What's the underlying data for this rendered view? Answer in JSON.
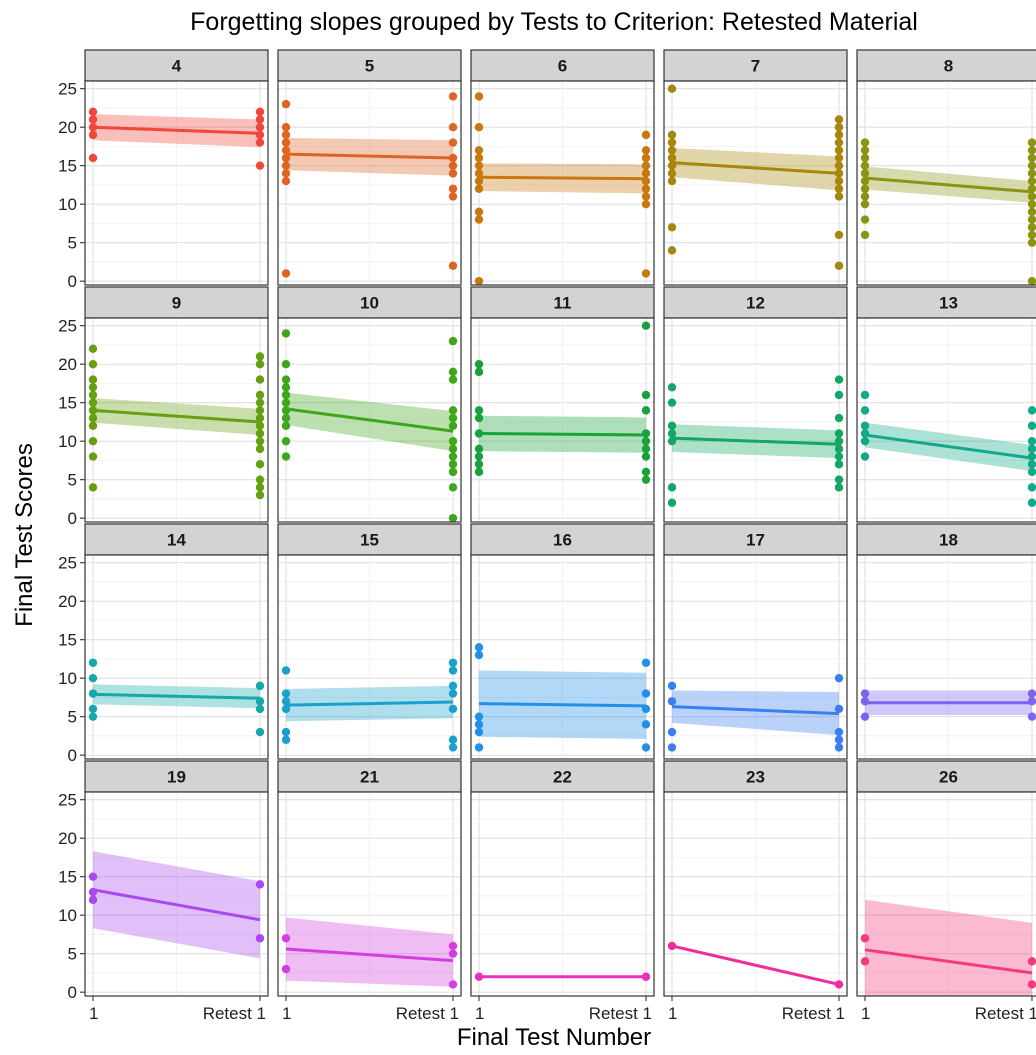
{
  "chart_data": {
    "type": "scatter",
    "title": "Forgetting slopes grouped by Tests to Criterion: Retested Material",
    "xlabel": "Final Test Number",
    "ylabel": "Final Test Scores",
    "x_categories": [
      "1",
      "Retest 1"
    ],
    "y_ticks": [
      0,
      5,
      10,
      15,
      20,
      25
    ],
    "ylim": [
      -0.5,
      26
    ],
    "grid": true,
    "layout": {
      "rows": 4,
      "cols": 5
    },
    "panels": [
      {
        "label": "4",
        "color": "#F0463C",
        "y1": [
          22,
          21,
          20,
          19,
          16
        ],
        "y2": [
          22,
          21,
          20,
          19,
          18,
          15
        ],
        "fit": [
          20.0,
          19.2
        ],
        "ci": [
          [
            21.7,
            18.3
          ],
          [
            21.0,
            17.4
          ]
        ]
      },
      {
        "label": "5",
        "color": "#DE6424",
        "y1": [
          23,
          20,
          19,
          18,
          17,
          16,
          15,
          14,
          13,
          1
        ],
        "y2": [
          24,
          20,
          18,
          16,
          15,
          14,
          12,
          11,
          2
        ],
        "fit": [
          16.5,
          16.0
        ],
        "ci": [
          [
            18.6,
            14.4
          ],
          [
            18.3,
            13.7
          ]
        ]
      },
      {
        "label": "6",
        "color": "#C8780E",
        "y1": [
          24,
          20,
          17,
          16,
          15,
          14,
          13,
          12,
          9,
          8,
          0
        ],
        "y2": [
          19,
          17,
          16,
          15,
          14,
          13,
          12,
          11,
          10,
          1
        ],
        "fit": [
          13.5,
          13.3
        ],
        "ci": [
          [
            15.3,
            11.7
          ],
          [
            15.2,
            11.4
          ]
        ]
      },
      {
        "label": "7",
        "color": "#A8860C",
        "y1": [
          25,
          19,
          18,
          17,
          16,
          15,
          14,
          13,
          7,
          4
        ],
        "y2": [
          21,
          20,
          19,
          18,
          17,
          16,
          15,
          14,
          13,
          12,
          11,
          6,
          2
        ],
        "fit": [
          15.4,
          14.0
        ],
        "ci": [
          [
            17.3,
            13.5
          ],
          [
            16.2,
            11.8
          ]
        ]
      },
      {
        "label": "8",
        "color": "#8A9412",
        "y1": [
          18,
          17,
          16,
          15,
          14,
          13,
          12,
          11,
          10,
          8,
          6
        ],
        "y2": [
          18,
          17,
          16,
          15,
          14,
          13,
          12,
          11,
          10,
          9,
          8,
          7,
          6,
          5,
          0
        ],
        "fit": [
          13.4,
          11.6
        ],
        "ci": [
          [
            14.9,
            11.9
          ],
          [
            13.0,
            10.2
          ]
        ]
      },
      {
        "label": "9",
        "color": "#64A012",
        "y1": [
          22,
          20,
          18,
          17,
          16,
          15,
          14,
          13,
          12,
          10,
          8,
          4
        ],
        "y2": [
          21,
          20,
          18,
          16,
          15,
          14,
          13,
          12,
          11,
          10,
          9,
          7,
          5,
          4,
          3
        ],
        "fit": [
          14.0,
          12.5
        ],
        "ci": [
          [
            15.6,
            12.4
          ],
          [
            14.2,
            10.8
          ]
        ]
      },
      {
        "label": "10",
        "color": "#3EA61A",
        "y1": [
          24,
          20,
          18,
          17,
          16,
          15,
          14,
          13,
          12,
          10,
          8
        ],
        "y2": [
          23,
          19,
          18,
          14,
          13,
          12,
          10,
          9,
          8,
          7,
          6,
          4,
          0
        ],
        "fit": [
          14.2,
          11.3
        ],
        "ci": [
          [
            16.3,
            12.1
          ],
          [
            13.9,
            8.7
          ]
        ]
      },
      {
        "label": "11",
        "color": "#18A23C",
        "y1": [
          20,
          19,
          14,
          13,
          11,
          9,
          8,
          7,
          6
        ],
        "y2": [
          25,
          16,
          14,
          11,
          10,
          9,
          8,
          6,
          5
        ],
        "fit": [
          11.0,
          10.8
        ],
        "ci": [
          [
            13.3,
            8.7
          ],
          [
            13.1,
            8.5
          ]
        ]
      },
      {
        "label": "12",
        "color": "#14A664",
        "y1": [
          17,
          15,
          12,
          11,
          10,
          4,
          2
        ],
        "y2": [
          18,
          16,
          13,
          11,
          10,
          9,
          8,
          7,
          5,
          4
        ],
        "fit": [
          10.4,
          9.6
        ],
        "ci": [
          [
            12.2,
            8.6
          ],
          [
            11.4,
            7.8
          ]
        ]
      },
      {
        "label": "13",
        "color": "#12A88A",
        "y1": [
          16,
          14,
          12,
          11,
          10,
          8
        ],
        "y2": [
          14,
          12,
          10,
          9,
          8,
          7,
          6,
          4,
          2
        ],
        "fit": [
          10.8,
          7.8
        ],
        "ci": [
          [
            12.4,
            9.2
          ],
          [
            9.5,
            6.1
          ]
        ]
      },
      {
        "label": "14",
        "color": "#16A8AA",
        "y1": [
          12,
          10,
          8,
          6,
          5
        ],
        "y2": [
          9,
          7,
          6,
          3
        ],
        "fit": [
          7.9,
          7.4
        ],
        "ci": [
          [
            9.2,
            6.6
          ],
          [
            8.7,
            6.1
          ]
        ]
      },
      {
        "label": "15",
        "color": "#1AA0CC",
        "y1": [
          11,
          8,
          7,
          6,
          3,
          2
        ],
        "y2": [
          12,
          11,
          9,
          8,
          6,
          2,
          1
        ],
        "fit": [
          6.5,
          6.9
        ],
        "ci": [
          [
            8.6,
            4.4
          ],
          [
            9.0,
            4.8
          ]
        ]
      },
      {
        "label": "16",
        "color": "#2290E8",
        "y1": [
          14,
          13,
          5,
          4,
          3,
          1
        ],
        "y2": [
          12,
          8,
          6,
          4,
          1
        ],
        "fit": [
          6.7,
          6.4
        ],
        "ci": [
          [
            11.0,
            2.4
          ],
          [
            10.7,
            2.1
          ]
        ]
      },
      {
        "label": "17",
        "color": "#3A7EF0",
        "y1": [
          9,
          7,
          3,
          1
        ],
        "y2": [
          10,
          6,
          3,
          2,
          1
        ],
        "fit": [
          6.3,
          5.4
        ],
        "ci": [
          [
            8.4,
            4.2
          ],
          [
            8.2,
            2.6
          ]
        ]
      },
      {
        "label": "18",
        "color": "#7C64F0",
        "y1": [
          8,
          7,
          5
        ],
        "y2": [
          8,
          7,
          5
        ],
        "fit": [
          6.8,
          6.8
        ],
        "ci": [
          [
            8.4,
            5.2
          ],
          [
            8.4,
            5.2
          ]
        ]
      },
      {
        "label": "19",
        "color": "#A848EE",
        "y1": [
          15,
          13,
          12
        ],
        "y2": [
          14,
          7
        ],
        "fit": [
          13.3,
          9.4
        ],
        "ci": [
          [
            18.3,
            8.3
          ],
          [
            14.4,
            4.4
          ]
        ]
      },
      {
        "label": "21",
        "color": "#D43EE0",
        "y1": [
          7,
          3
        ],
        "y2": [
          6,
          5,
          1
        ],
        "fit": [
          5.6,
          4.1
        ],
        "ci": [
          [
            9.7,
            1.5
          ],
          [
            7.5,
            0.7
          ]
        ]
      },
      {
        "label": "22",
        "color": "#EC30BE",
        "y1": [
          2
        ],
        "y2": [
          2
        ],
        "fit": [
          2,
          2
        ],
        "ci": null
      },
      {
        "label": "23",
        "color": "#F02C9C",
        "y1": [
          6
        ],
        "y2": [
          1
        ],
        "fit": [
          6,
          1
        ],
        "ci": null
      },
      {
        "label": "26",
        "color": "#F43A7C",
        "y1": [
          7,
          4
        ],
        "y2": [
          4,
          1
        ],
        "fit": [
          5.5,
          2.5
        ],
        "ci": [
          [
            12.0,
            -1.0
          ],
          [
            9.0,
            -4.0
          ]
        ]
      }
    ]
  }
}
